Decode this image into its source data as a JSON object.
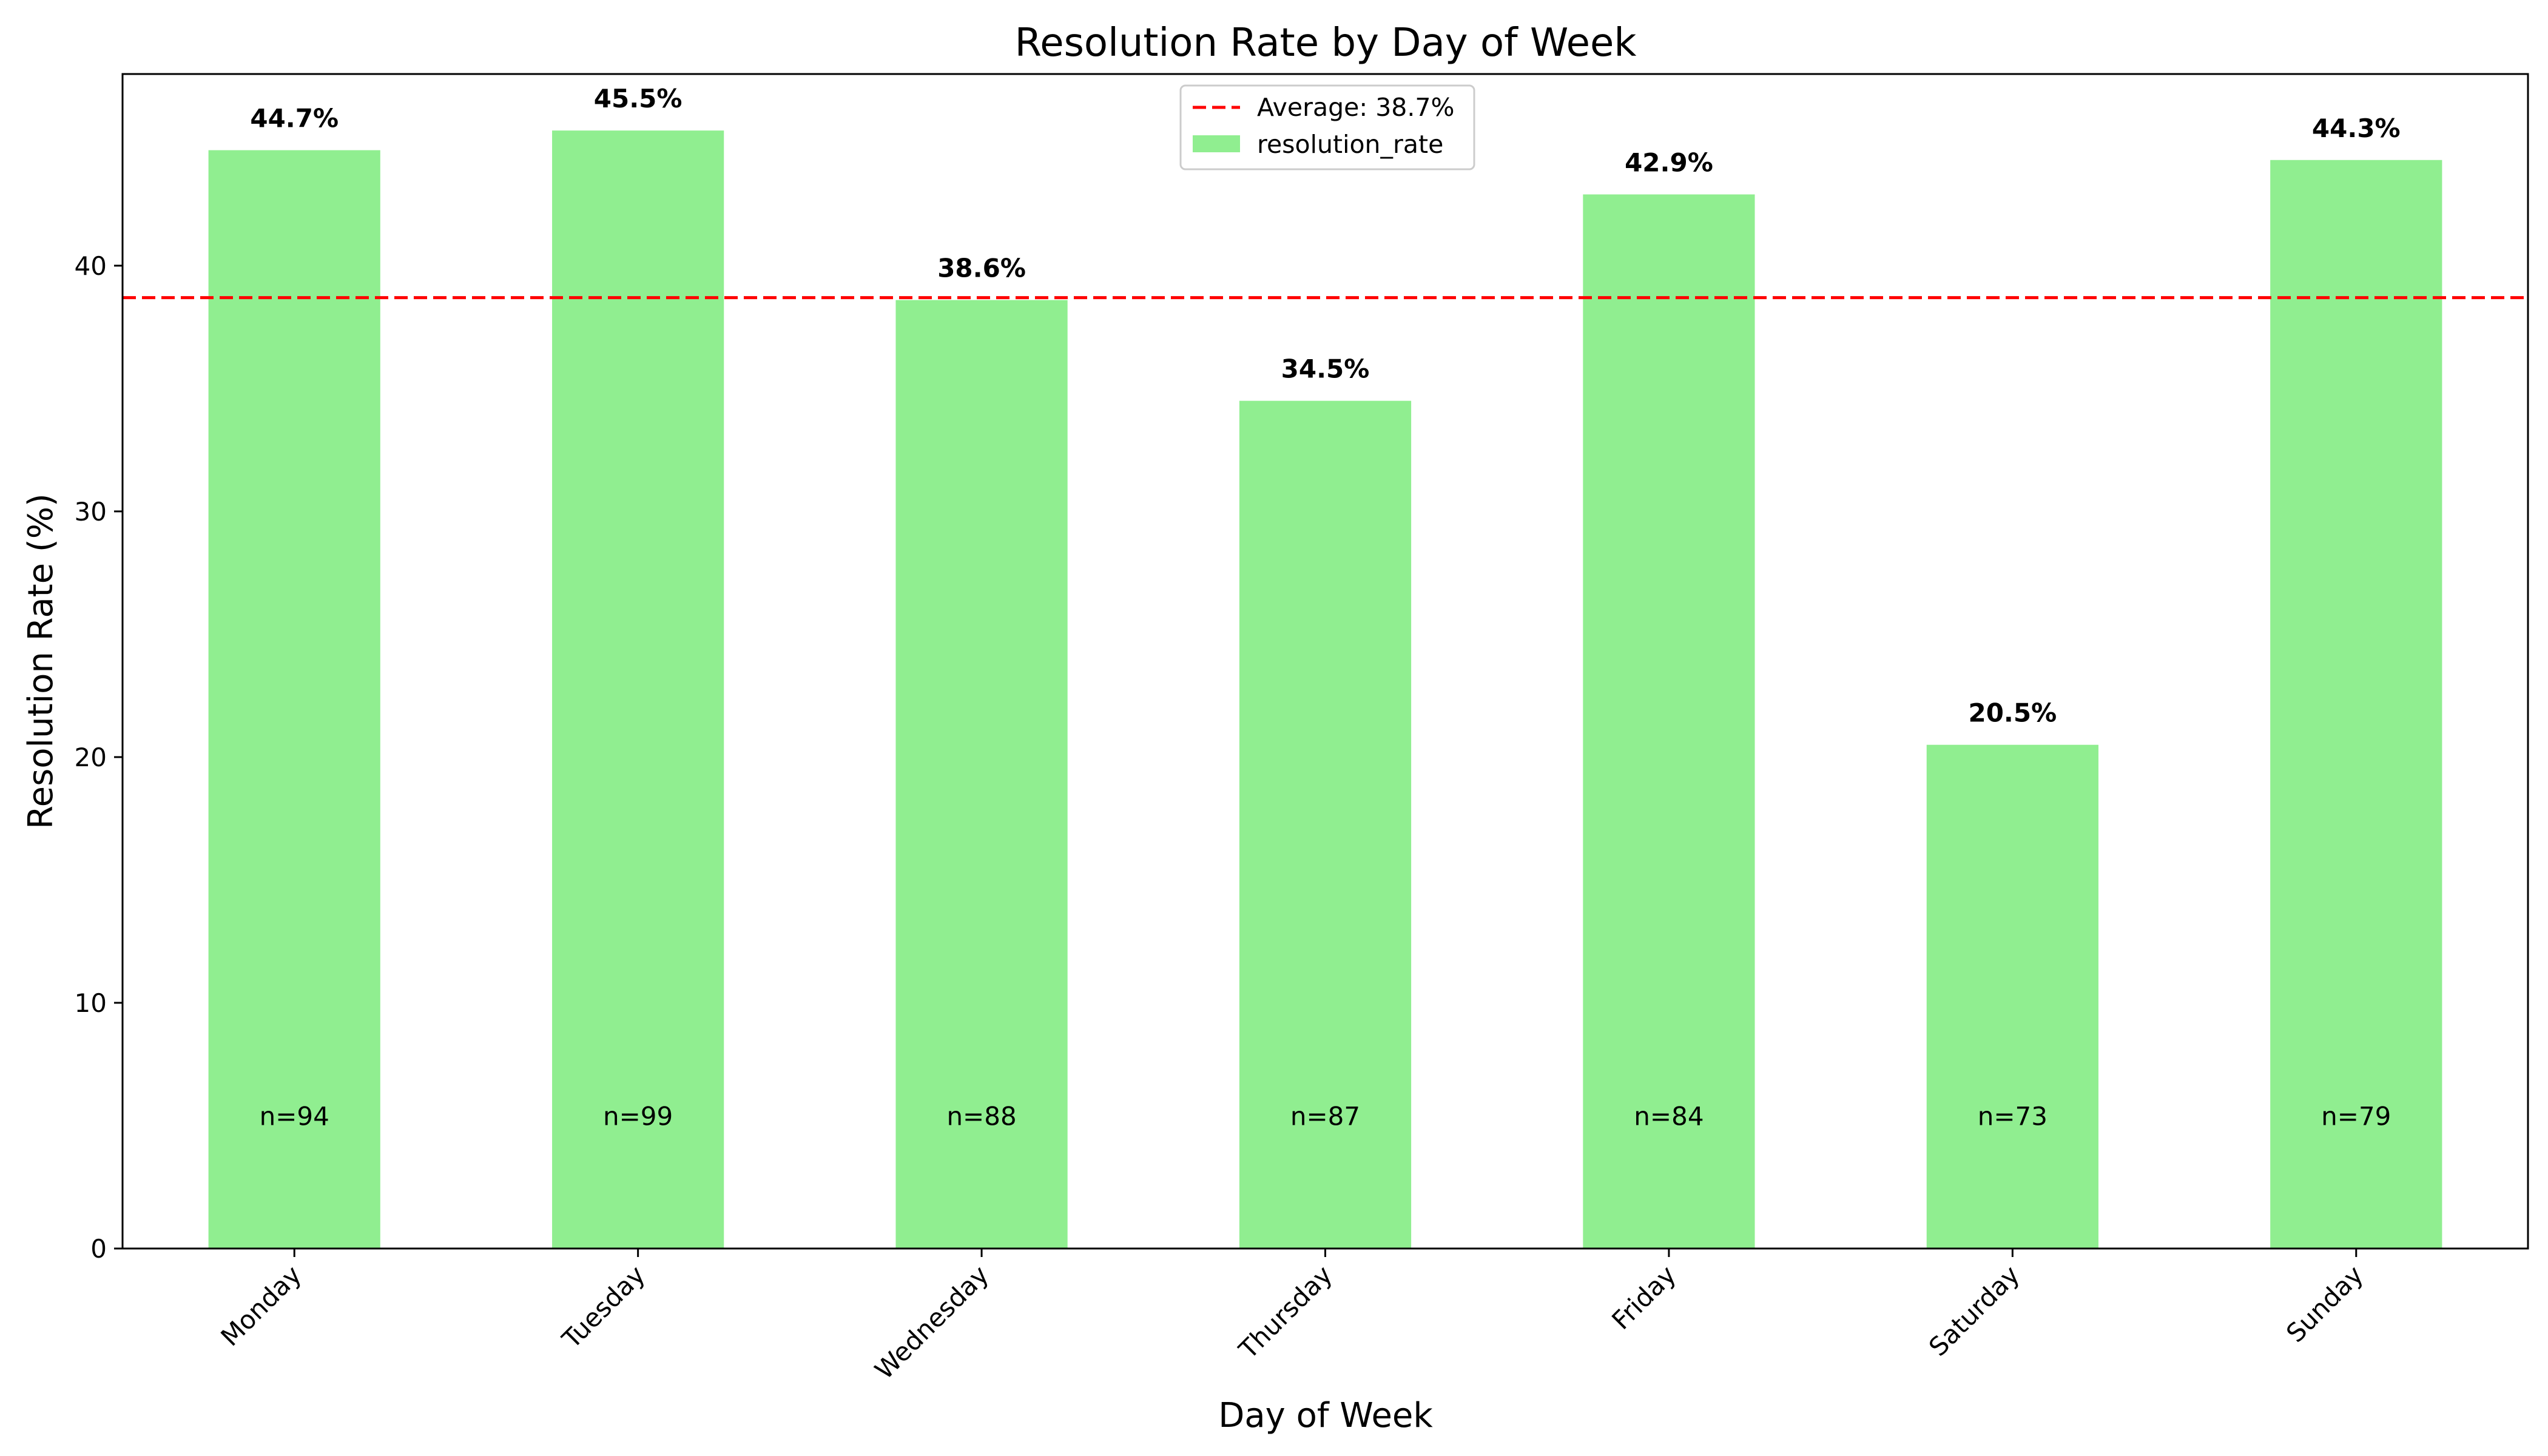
{
  "chart_data": {
    "type": "bar",
    "title": "Resolution Rate by Day of Week",
    "xlabel": "Day of Week",
    "ylabel": "Resolution Rate (%)",
    "categories": [
      "Monday",
      "Tuesday",
      "Wednesday",
      "Thursday",
      "Friday",
      "Saturday",
      "Sunday"
    ],
    "series": [
      {
        "name": "resolution_rate",
        "values": [
          44.7,
          45.5,
          38.6,
          34.5,
          42.9,
          20.5,
          44.3
        ],
        "color": "#90ee90"
      }
    ],
    "value_labels": [
      "44.7%",
      "45.5%",
      "38.6%",
      "34.5%",
      "42.9%",
      "20.5%",
      "44.3%"
    ],
    "counts": [
      "n=94",
      "n=99",
      "n=88",
      "n=87",
      "n=84",
      "n=73",
      "n=79"
    ],
    "count_label_y": 5.4,
    "average": {
      "value": 38.7,
      "label": "Average: 38.7%",
      "color": "#ff0000",
      "style": "dashed"
    },
    "ylim": [
      0,
      47.8
    ],
    "yticks": [
      0,
      10,
      20,
      30,
      40
    ],
    "xtick_rotation": 45,
    "grid": false,
    "legend_position": "top-center"
  }
}
